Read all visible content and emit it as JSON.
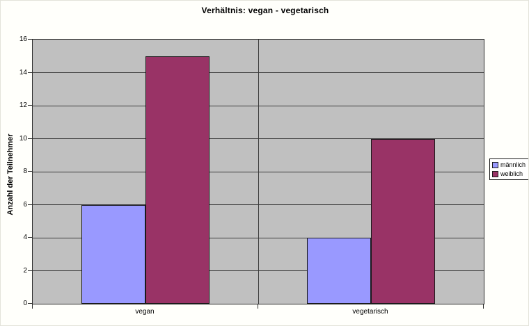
{
  "chart_data": {
    "type": "bar",
    "title": "Verhältnis: vegan - vegetarisch",
    "categories": [
      "vegan",
      "vegetarisch"
    ],
    "series": [
      {
        "name": "männlich",
        "color": "#9999ff",
        "values": [
          6,
          4
        ]
      },
      {
        "name": "weiblich",
        "color": "#993366",
        "values": [
          15,
          10
        ]
      }
    ],
    "xlabel": "",
    "ylabel": "Anzahl der Teilnehmer",
    "ylim": [
      0,
      16
    ],
    "ytick_step": 2,
    "ytick_labels": [
      "0",
      "2",
      "4",
      "6",
      "8",
      "10",
      "12",
      "14",
      "16"
    ],
    "grid": true,
    "legend_position": "right",
    "plot_background": "#c0c0c0",
    "gridline_color": "#3a3a3a",
    "bar_border_color": "#1a1a1a"
  }
}
